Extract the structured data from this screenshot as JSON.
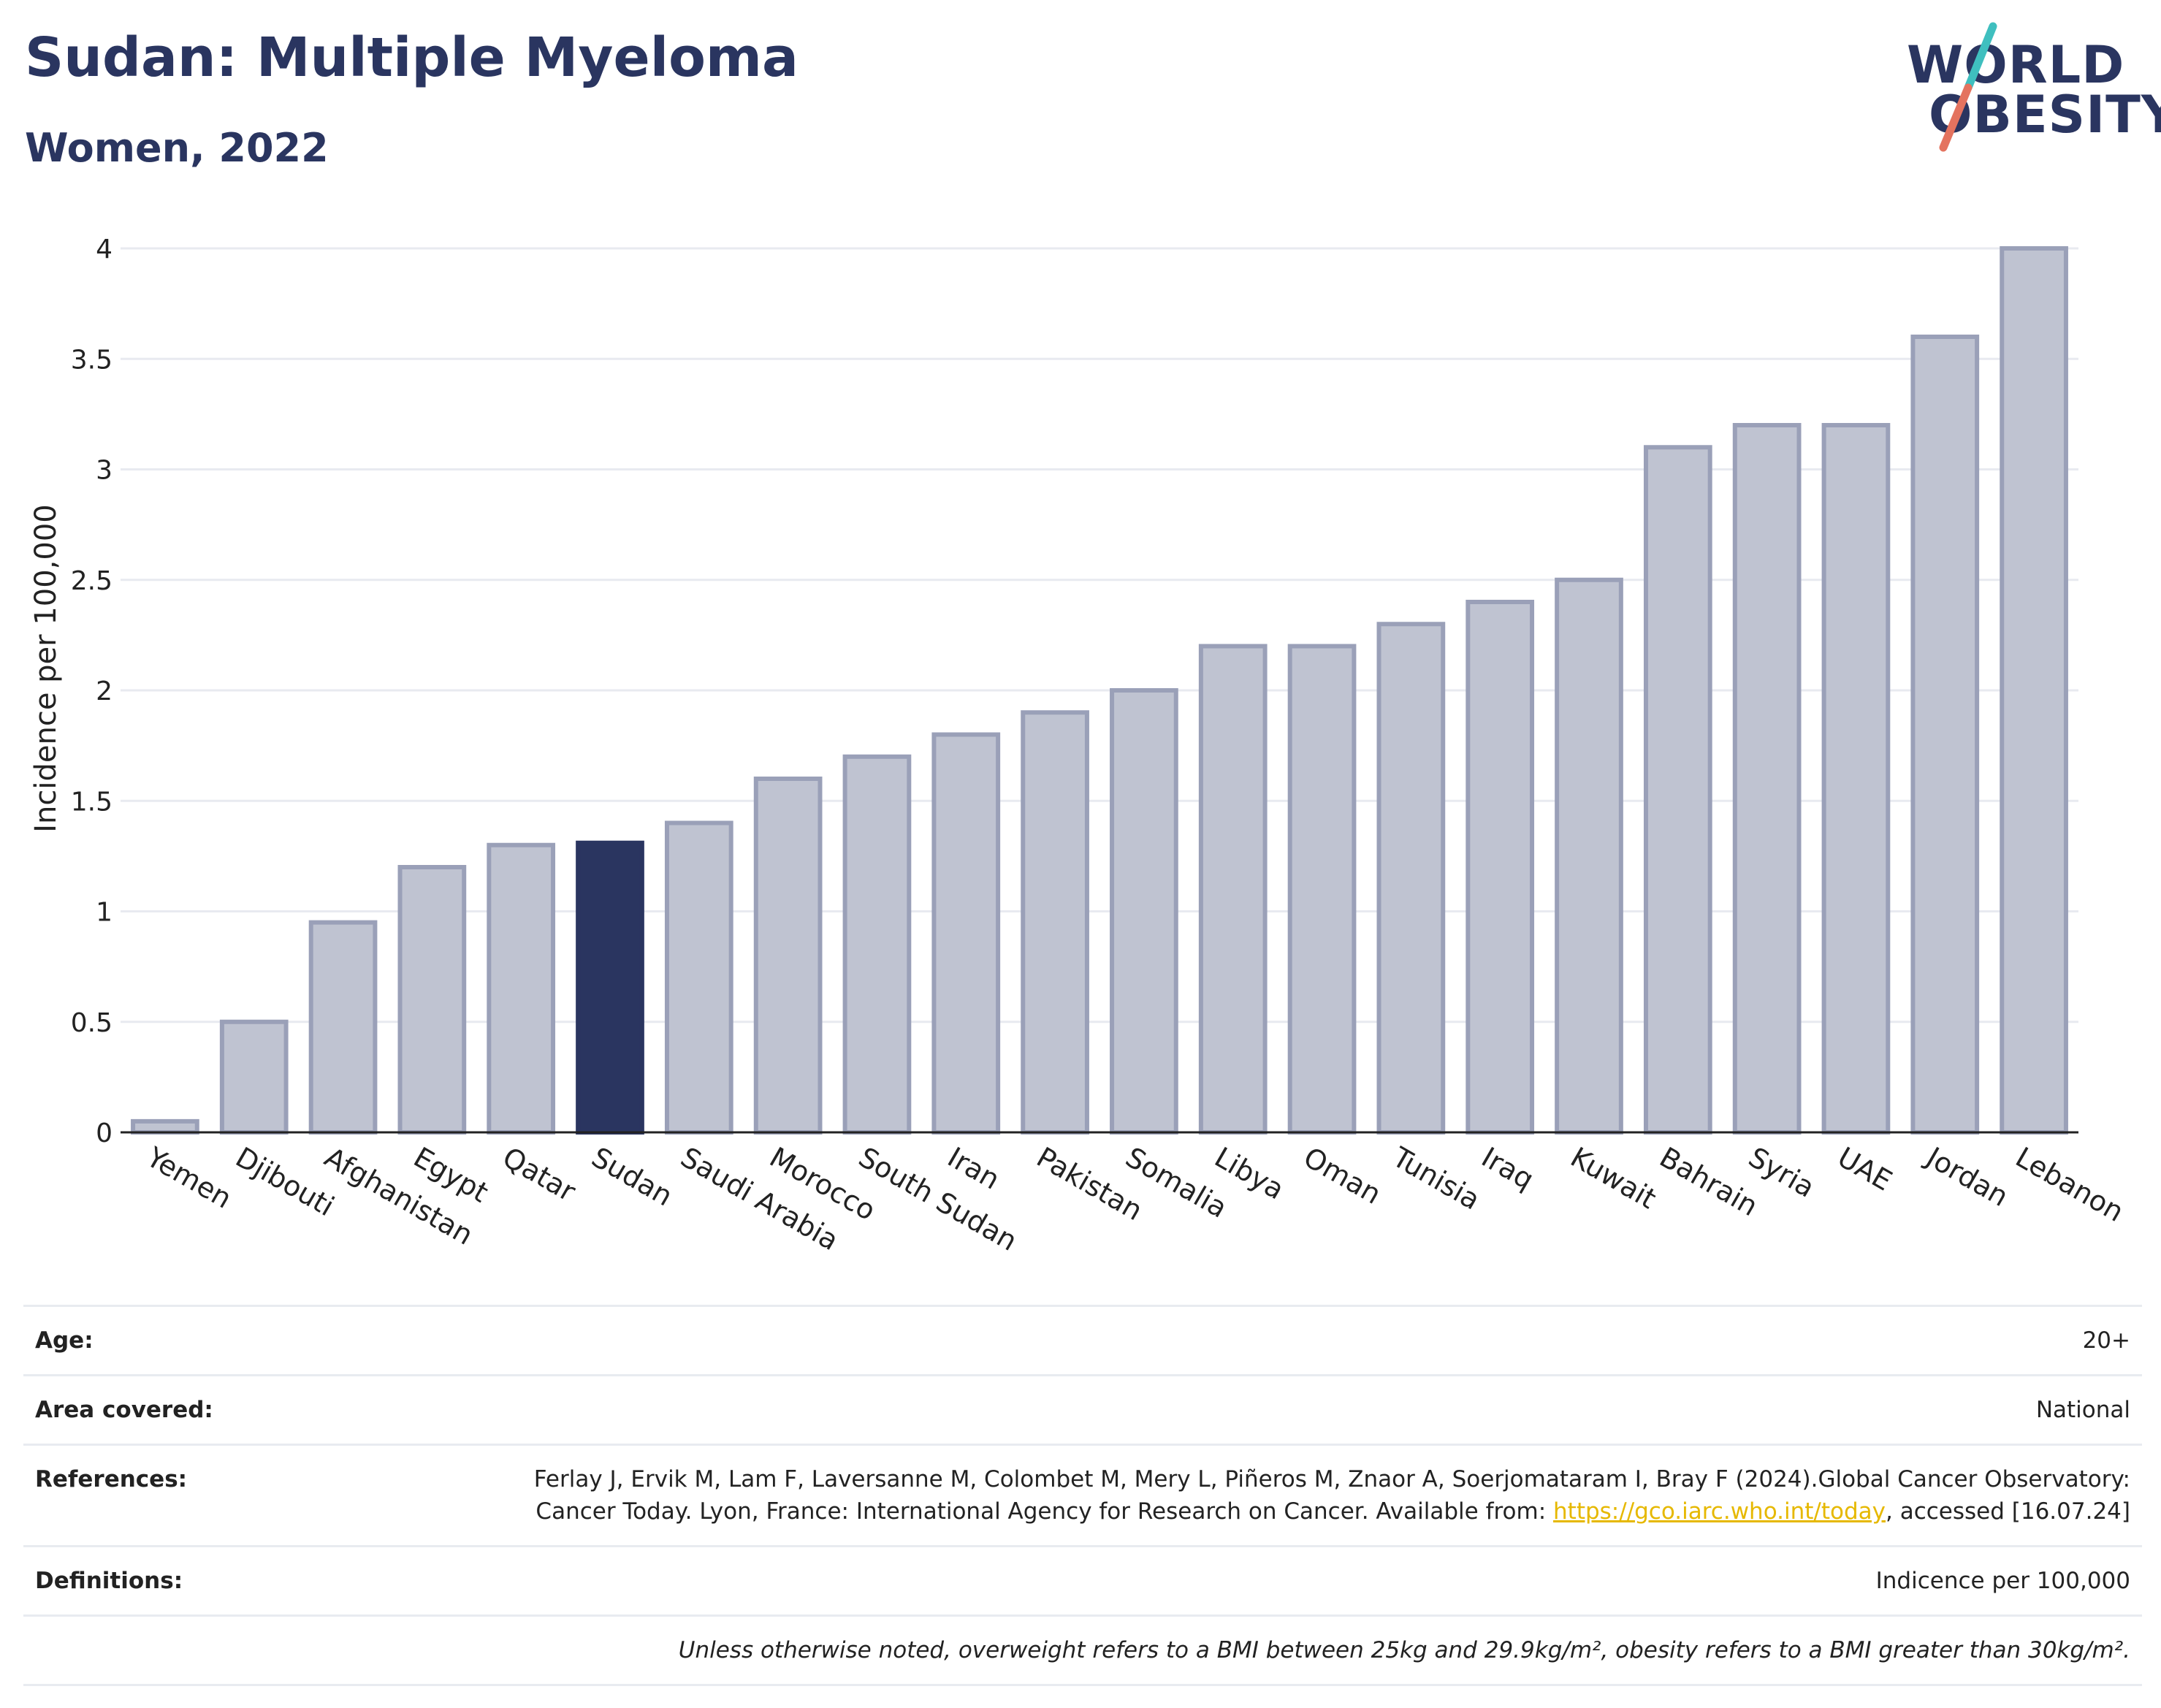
{
  "header": {
    "title": "Sudan: Multiple Myeloma",
    "subtitle": "Women, 2022"
  },
  "logo": {
    "line1": "WORLD",
    "line2": "OBESITY",
    "slash_colors": [
      "#3fbfbf",
      "#e4735f"
    ],
    "text_color": "#2a3560"
  },
  "colors": {
    "bar_default": "#bfc3d1",
    "bar_border": "#9aa0b8",
    "bar_highlight": "#2a3560",
    "grid": "#e8eaf0"
  },
  "chart_data": {
    "type": "bar",
    "categories": [
      "Yemen",
      "Djibouti",
      "Afghanistan",
      "Egypt",
      "Qatar",
      "Sudan",
      "Saudi Arabia",
      "Morocco",
      "South Sudan",
      "Iran",
      "Pakistan",
      "Somalia",
      "Libya",
      "Oman",
      "Tunisia",
      "Iraq",
      "Kuwait",
      "Bahrain",
      "Syria",
      "UAE",
      "Jordan",
      "Lebanon"
    ],
    "values": [
      0.05,
      0.5,
      0.95,
      1.2,
      1.3,
      1.31,
      1.4,
      1.6,
      1.7,
      1.8,
      1.9,
      2.0,
      2.2,
      2.2,
      2.3,
      2.4,
      2.5,
      3.1,
      3.2,
      3.2,
      3.6,
      4.0
    ],
    "highlight": "Sudan",
    "ylabel": "Incidence per 100,000",
    "ylim": [
      0,
      4
    ],
    "yticks": [
      0,
      0.5,
      1,
      1.5,
      2,
      2.5,
      3,
      3.5,
      4
    ],
    "ytick_labels": [
      "0",
      "0.5",
      "1",
      "1.5",
      "2",
      "2.5",
      "3",
      "3.5",
      "4"
    ],
    "grid": true,
    "legend": "none"
  },
  "info": {
    "age_label": "Age:",
    "age_value": "20+",
    "area_label": "Area covered:",
    "area_value": "National",
    "references_label": "References:",
    "references_text": "Ferlay J, Ervik M, Lam F, Laversanne M, Colombet M, Mery L, Piñeros M, Znaor A, Soerjomataram I, Bray F (2024).Global Cancer Observatory: Cancer Today. Lyon, France: International Agency for Research on Cancer. Available from: ",
    "references_link": "https://gco.iarc.who.int/today",
    "references_tail": ", accessed [16.07.24]",
    "definitions_label": "Definitions:",
    "definitions_value": "Indicence per 100,000",
    "note": "Unless otherwise noted, overweight refers to a BMI between 25kg and 29.9kg/m², obesity refers to a BMI greater than 30kg/m²."
  }
}
